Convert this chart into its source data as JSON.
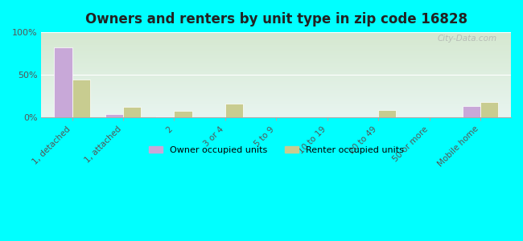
{
  "title": "Owners and renters by unit type in zip code 16828",
  "categories": [
    "1, detached",
    "1, attached",
    "2",
    "3 or 4",
    "5 to 9",
    "10 to 19",
    "20 to 49",
    "50 or more",
    "Mobile home"
  ],
  "owner_values": [
    82,
    4,
    1,
    0,
    0,
    0,
    0,
    0,
    14
  ],
  "renter_values": [
    45,
    13,
    8,
    16,
    0,
    0,
    9,
    0,
    18
  ],
  "owner_color": "#c8a8d8",
  "renter_color": "#c8cc90",
  "background_color": "#00ffff",
  "plot_bg_top": "#e8f0d0",
  "plot_bg_bottom": "#d8eee8",
  "ylim": [
    0,
    100
  ],
  "yticks": [
    0,
    50,
    100
  ],
  "ytick_labels": [
    "0%",
    "50%",
    "100%"
  ],
  "bar_width": 0.35,
  "legend_owner": "Owner occupied units",
  "legend_renter": "Renter occupied units",
  "watermark": "City-Data.com"
}
